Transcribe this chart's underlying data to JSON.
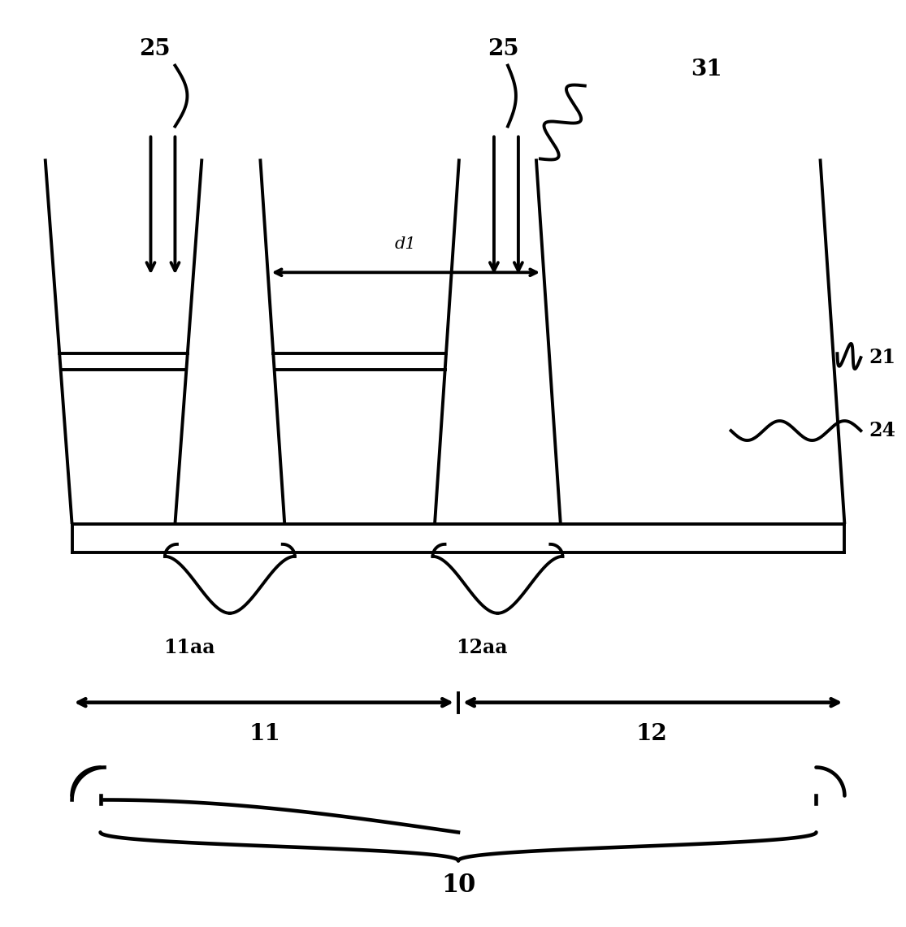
{
  "bg_color": "#ffffff",
  "line_color": "#000000",
  "lw": 2.8,
  "fig_width": 11.15,
  "fig_height": 11.41,
  "labels": {
    "25_left": "25",
    "25_right": "25",
    "31": "31",
    "21": "21",
    "24": "24",
    "11aa": "11aa",
    "12aa": "12aa",
    "11": "11",
    "12": "12",
    "10": "10",
    "d1": "d1"
  },
  "fontsize_large": 20,
  "fontsize_med": 17,
  "fontsize_small": 15
}
